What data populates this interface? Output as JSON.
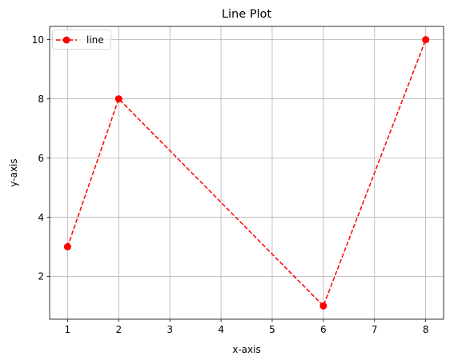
{
  "chart_data": {
    "type": "line",
    "title": "Line Plot",
    "xlabel": "x-axis",
    "ylabel": "y-axis",
    "x": [
      1,
      2,
      6,
      8
    ],
    "series": [
      {
        "name": "line",
        "values": [
          3,
          8,
          1,
          10
        ],
        "color": "#ff0000",
        "line_style": "dashed",
        "marker": "circle"
      }
    ],
    "xlim": [
      0.65,
      8.35
    ],
    "ylim": [
      0.55,
      10.45
    ],
    "xticks": [
      1,
      2,
      3,
      4,
      5,
      6,
      7,
      8
    ],
    "yticks": [
      2,
      4,
      6,
      8,
      10
    ],
    "grid": true,
    "legend": "upper-left"
  }
}
